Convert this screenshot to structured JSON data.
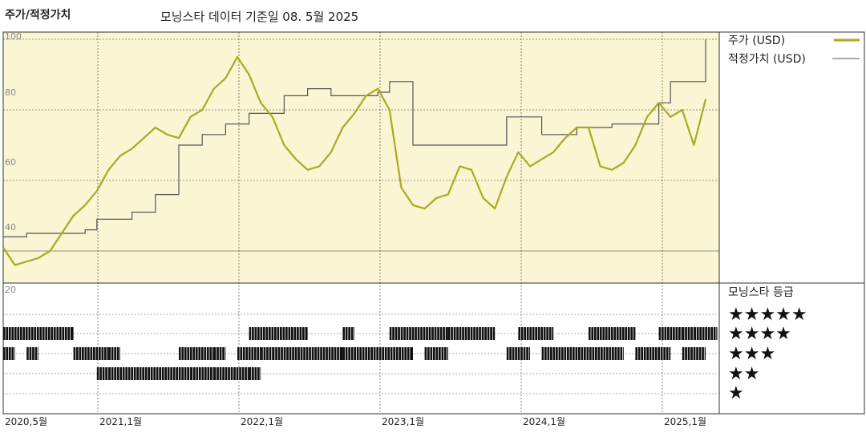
{
  "header": {
    "left_title": "주가/적정가치",
    "center_title": "모닝스타 데이터 기준일 08. 5월 2025"
  },
  "legend": {
    "price_label": "주가 (USD)",
    "fair_value_label": "적정가치 (USD)",
    "rating_title": "모닝스타 등급",
    "star_levels": [
      "★★★★★",
      "★★★★",
      "★★★",
      "★★",
      "★"
    ]
  },
  "colors": {
    "panel_bg": "#faf5d2",
    "price": "#aaaa22",
    "fair_value": "#555555",
    "rating_bar": "#111111"
  },
  "chart_data": {
    "type": "line",
    "y_ticks": [
      20,
      40,
      60,
      80,
      100
    ],
    "x_ticks": [
      "2020,5월",
      "2021,1월",
      "2022,1월",
      "2023,1월",
      "2024,1월",
      "2025,1월"
    ],
    "ylim": [
      20,
      100
    ],
    "x_range": [
      "2020-05",
      "2025-05"
    ],
    "series": [
      {
        "name": "주가 (USD)",
        "x": [
          "2020-05",
          "2020-06",
          "2020-07",
          "2020-08",
          "2020-09",
          "2020-10",
          "2020-11",
          "2020-12",
          "2021-01",
          "2021-02",
          "2021-03",
          "2021-04",
          "2021-05",
          "2021-06",
          "2021-07",
          "2021-08",
          "2021-09",
          "2021-10",
          "2021-11",
          "2021-12",
          "2022-01",
          "2022-02",
          "2022-03",
          "2022-04",
          "2022-05",
          "2022-06",
          "2022-07",
          "2022-08",
          "2022-09",
          "2022-10",
          "2022-11",
          "2022-12",
          "2023-01",
          "2023-02",
          "2023-03",
          "2023-04",
          "2023-05",
          "2023-06",
          "2023-07",
          "2023-08",
          "2023-09",
          "2023-10",
          "2023-11",
          "2023-12",
          "2024-01",
          "2024-02",
          "2024-03",
          "2024-04",
          "2024-05",
          "2024-06",
          "2024-07",
          "2024-08",
          "2024-09",
          "2024-10",
          "2024-11",
          "2024-12",
          "2025-01",
          "2025-02",
          "2025-03",
          "2025-04",
          "2025-05"
        ],
        "y": [
          41,
          36,
          37,
          38,
          40,
          45,
          50,
          53,
          57,
          63,
          67,
          69,
          72,
          75,
          73,
          72,
          78,
          80,
          86,
          89,
          95,
          90,
          82,
          78,
          70,
          66,
          63,
          64,
          68,
          75,
          79,
          84,
          86,
          80,
          58,
          53,
          52,
          55,
          56,
          64,
          63,
          55,
          52,
          61,
          68,
          64,
          66,
          68,
          72,
          75,
          75,
          64,
          63,
          65,
          70,
          78,
          82,
          78,
          80,
          70,
          83
        ]
      },
      {
        "name": "적정가치 (USD)",
        "x": [
          "2020-05",
          "2020-06",
          "2020-07",
          "2020-09",
          "2020-12",
          "2021-01",
          "2021-04",
          "2021-06",
          "2021-08",
          "2021-10",
          "2021-12",
          "2022-02",
          "2022-05",
          "2022-07",
          "2022-09",
          "2022-12",
          "2023-01",
          "2023-02",
          "2023-03",
          "2023-04",
          "2023-09",
          "2023-12",
          "2024-01",
          "2024-03",
          "2024-06",
          "2024-09",
          "2024-12",
          "2025-01",
          "2025-02",
          "2025-04",
          "2025-05"
        ],
        "y": [
          44,
          44,
          45,
          45,
          46,
          49,
          51,
          56,
          70,
          73,
          76,
          79,
          84,
          86,
          84,
          84,
          85,
          88,
          88,
          70,
          70,
          78,
          78,
          73,
          75,
          76,
          76,
          82,
          88,
          88,
          100
        ]
      }
    ],
    "rating_rows": [
      {
        "stars": 5,
        "segments": [
          [
            "2020-05",
            "2020-10"
          ],
          [
            "2022-02",
            "2022-06"
          ],
          [
            "2022-10",
            "2022-10"
          ],
          [
            "2023-02",
            "2023-06"
          ],
          [
            "2023-07",
            "2023-10"
          ],
          [
            "2024-01",
            "2024-03"
          ],
          [
            "2024-07",
            "2024-10"
          ],
          [
            "2025-01",
            "2025-02"
          ],
          [
            "2025-03",
            "2025-03"
          ],
          [
            "2025-04",
            "2025-05"
          ]
        ]
      },
      {
        "stars": 4,
        "segments": [
          [
            "2020-05",
            "2020-05"
          ],
          [
            "2020-07",
            "2020-07"
          ],
          [
            "2020-11",
            "2021-01"
          ],
          [
            "2021-02",
            "2021-02"
          ],
          [
            "2021-08",
            "2021-10"
          ],
          [
            "2021-11",
            "2021-11"
          ],
          [
            "2022-01",
            "2022-02"
          ],
          [
            "2022-03",
            "2022-03"
          ],
          [
            "2022-04",
            "2022-09"
          ],
          [
            "2022-10",
            "2023-03"
          ],
          [
            "2023-05",
            "2023-06"
          ],
          [
            "2023-12",
            "2024-01"
          ],
          [
            "2024-03",
            "2024-09"
          ],
          [
            "2024-11",
            "2025-01"
          ],
          [
            "2025-03",
            "2025-04"
          ]
        ]
      },
      {
        "stars": 3,
        "segments": [
          [
            "2021-01",
            "2021-01"
          ],
          [
            "2021-02",
            "2021-08"
          ],
          [
            "2021-09",
            "2021-10"
          ],
          [
            "2021-11",
            "2022-01"
          ],
          [
            "2022-02",
            "2022-02"
          ]
        ]
      },
      {
        "stars": 2,
        "segments": []
      },
      {
        "stars": 1,
        "segments": []
      }
    ]
  }
}
